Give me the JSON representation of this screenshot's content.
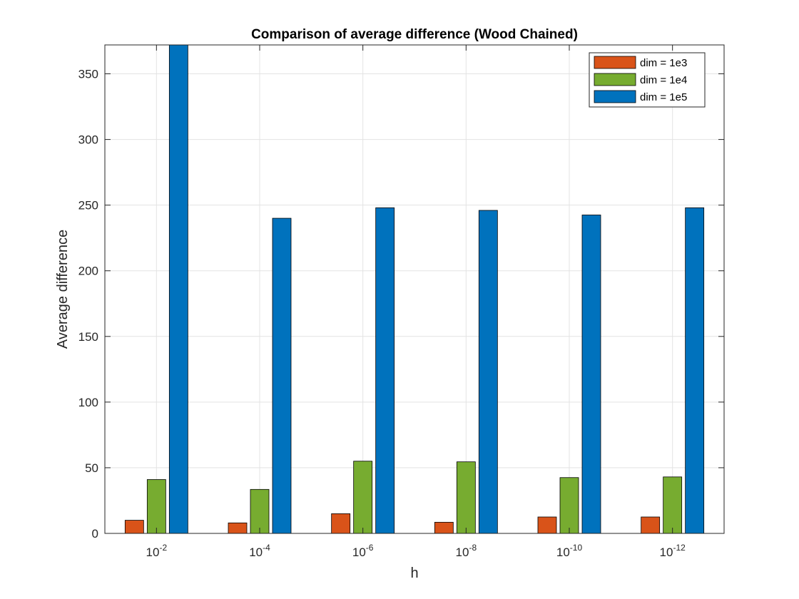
{
  "chart_data": {
    "type": "bar",
    "title": "Comparison of average difference (Wood Chained)",
    "xlabel": "h",
    "ylabel": "Average difference",
    "categories": [
      {
        "base": "10",
        "exp": "-2"
      },
      {
        "base": "10",
        "exp": "-4"
      },
      {
        "base": "10",
        "exp": "-6"
      },
      {
        "base": "10",
        "exp": "-8"
      },
      {
        "base": "10",
        "exp": "-10"
      },
      {
        "base": "10",
        "exp": "-12"
      }
    ],
    "series": [
      {
        "name": "dim = 1e3",
        "color": "#D95319",
        "values": [
          10,
          8,
          15,
          8.5,
          12.5,
          12.5
        ]
      },
      {
        "name": "dim = 1e4",
        "color": "#77AC30",
        "values": [
          41,
          33.5,
          55,
          54.5,
          42.5,
          43
        ]
      },
      {
        "name": "dim = 1e5",
        "color": "#0072BD",
        "values": [
          372,
          240,
          248,
          246,
          242.5,
          248
        ]
      }
    ],
    "ylim": [
      0,
      372
    ],
    "yticks": [
      0,
      50,
      100,
      150,
      200,
      250,
      300,
      350
    ],
    "grid": true,
    "legend_position": "top-right"
  }
}
